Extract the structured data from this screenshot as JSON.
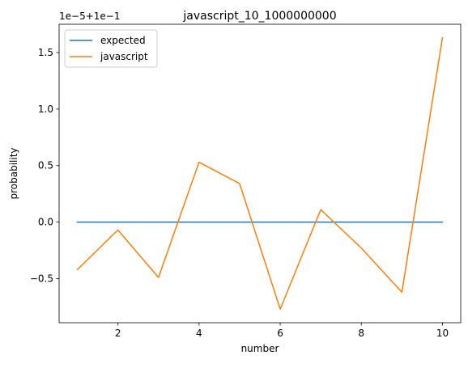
{
  "chart_data": {
    "type": "line",
    "title": "javascript_10_1000000000",
    "xlabel": "number",
    "ylabel": "probability",
    "offset_text": "1e−5+1e−1",
    "x": [
      1,
      2,
      3,
      4,
      5,
      6,
      7,
      8,
      9,
      10
    ],
    "series": [
      {
        "name": "expected",
        "color": "#1f77b4",
        "values": [
          0,
          0,
          0,
          0,
          0,
          0,
          0,
          0,
          0,
          0
        ]
      },
      {
        "name": "javascript",
        "color": "#ff7f0e",
        "values": [
          -0.42,
          -0.07,
          -0.49,
          0.53,
          0.34,
          -0.77,
          0.11,
          -0.23,
          -0.62,
          1.63
        ]
      }
    ],
    "xlim": [
      0.55,
      10.45
    ],
    "ylim": [
      -0.89,
      1.75
    ],
    "xticks": [
      2,
      4,
      6,
      8,
      10
    ],
    "xtick_labels": [
      "2",
      "4",
      "6",
      "8",
      "10"
    ],
    "yticks": [
      -0.5,
      0.0,
      0.5,
      1.0,
      1.5
    ],
    "ytick_labels": [
      "−0.5",
      "0.0",
      "0.5",
      "1.0",
      "1.5"
    ],
    "legend_position": "upper-left",
    "grid": false
  }
}
